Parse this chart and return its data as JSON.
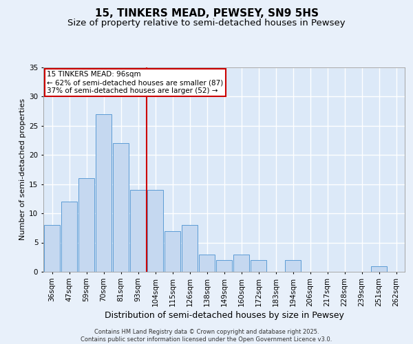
{
  "title1": "15, TINKERS MEAD, PEWSEY, SN9 5HS",
  "title2": "Size of property relative to semi-detached houses in Pewsey",
  "xlabel": "Distribution of semi-detached houses by size in Pewsey",
  "ylabel": "Number of semi-detached properties",
  "bin_labels": [
    "36sqm",
    "47sqm",
    "59sqm",
    "70sqm",
    "81sqm",
    "93sqm",
    "104sqm",
    "115sqm",
    "126sqm",
    "138sqm",
    "149sqm",
    "160sqm",
    "172sqm",
    "183sqm",
    "194sqm",
    "206sqm",
    "217sqm",
    "228sqm",
    "239sqm",
    "251sqm",
    "262sqm"
  ],
  "bar_values": [
    8,
    12,
    16,
    27,
    22,
    14,
    14,
    7,
    8,
    3,
    2,
    3,
    2,
    0,
    2,
    0,
    0,
    0,
    0,
    1,
    0
  ],
  "bar_color": "#c5d8f0",
  "bar_edge_color": "#5b9bd5",
  "vline_x": 5.5,
  "annotation_text": "15 TINKERS MEAD: 96sqm\n← 62% of semi-detached houses are smaller (87)\n37% of semi-detached houses are larger (52) →",
  "annotation_box_color": "#ffffff",
  "annotation_box_edge": "#cc0000",
  "vline_color": "#cc0000",
  "ylim": [
    0,
    35
  ],
  "yticks": [
    0,
    5,
    10,
    15,
    20,
    25,
    30,
    35
  ],
  "bg_color": "#dce9f8",
  "grid_color": "#ffffff",
  "fig_bg_color": "#e8f0fa",
  "footer": "Contains HM Land Registry data © Crown copyright and database right 2025.\nContains public sector information licensed under the Open Government Licence v3.0.",
  "title1_fontsize": 11,
  "title2_fontsize": 9.5,
  "xlabel_fontsize": 9,
  "ylabel_fontsize": 8,
  "tick_fontsize": 7.5,
  "annotation_fontsize": 7.5,
  "footer_fontsize": 6
}
